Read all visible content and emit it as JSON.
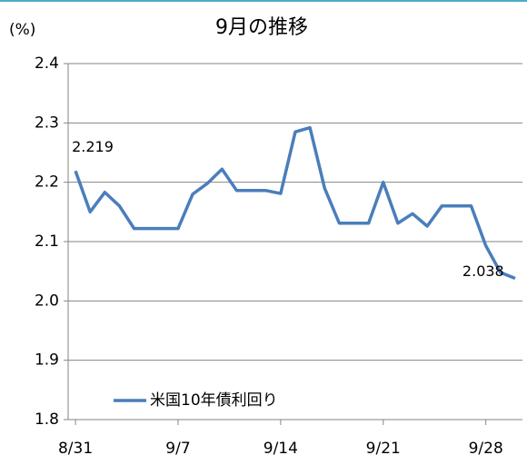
{
  "chart_data": {
    "type": "line",
    "title": "9月の推移",
    "ylabel": "(%)",
    "categories": [
      "8/31",
      null,
      null,
      null,
      null,
      null,
      null,
      "9/7",
      null,
      null,
      null,
      null,
      null,
      null,
      "9/14",
      null,
      null,
      null,
      null,
      null,
      null,
      "9/21",
      null,
      null,
      null,
      null,
      null,
      null,
      "9/28",
      null,
      null
    ],
    "series": [
      {
        "name": "米国10年債利回り",
        "color": "#4a7ebb",
        "values": [
          2.219,
          2.15,
          2.183,
          2.16,
          2.122,
          2.122,
          2.122,
          2.122,
          2.18,
          2.198,
          2.222,
          2.186,
          2.186,
          2.186,
          2.181,
          2.285,
          2.292,
          2.19,
          2.131,
          2.131,
          2.131,
          2.2,
          2.131,
          2.147,
          2.126,
          2.16,
          2.16,
          2.16,
          2.093,
          2.048,
          2.038
        ],
        "value_labels": [
          "2.219",
          null,
          null,
          null,
          null,
          null,
          null,
          null,
          null,
          null,
          null,
          null,
          null,
          null,
          null,
          null,
          null,
          null,
          null,
          null,
          null,
          null,
          null,
          null,
          null,
          null,
          null,
          null,
          null,
          null,
          "2.038"
        ]
      }
    ],
    "ylim": [
      1.8,
      2.4
    ],
    "yticks": [
      1.8,
      1.9,
      {
        "value": 2.0,
        "label": "2.0"
      },
      2.1,
      2.2,
      2.3,
      2.4
    ],
    "grid": true,
    "legend": "lower left"
  }
}
